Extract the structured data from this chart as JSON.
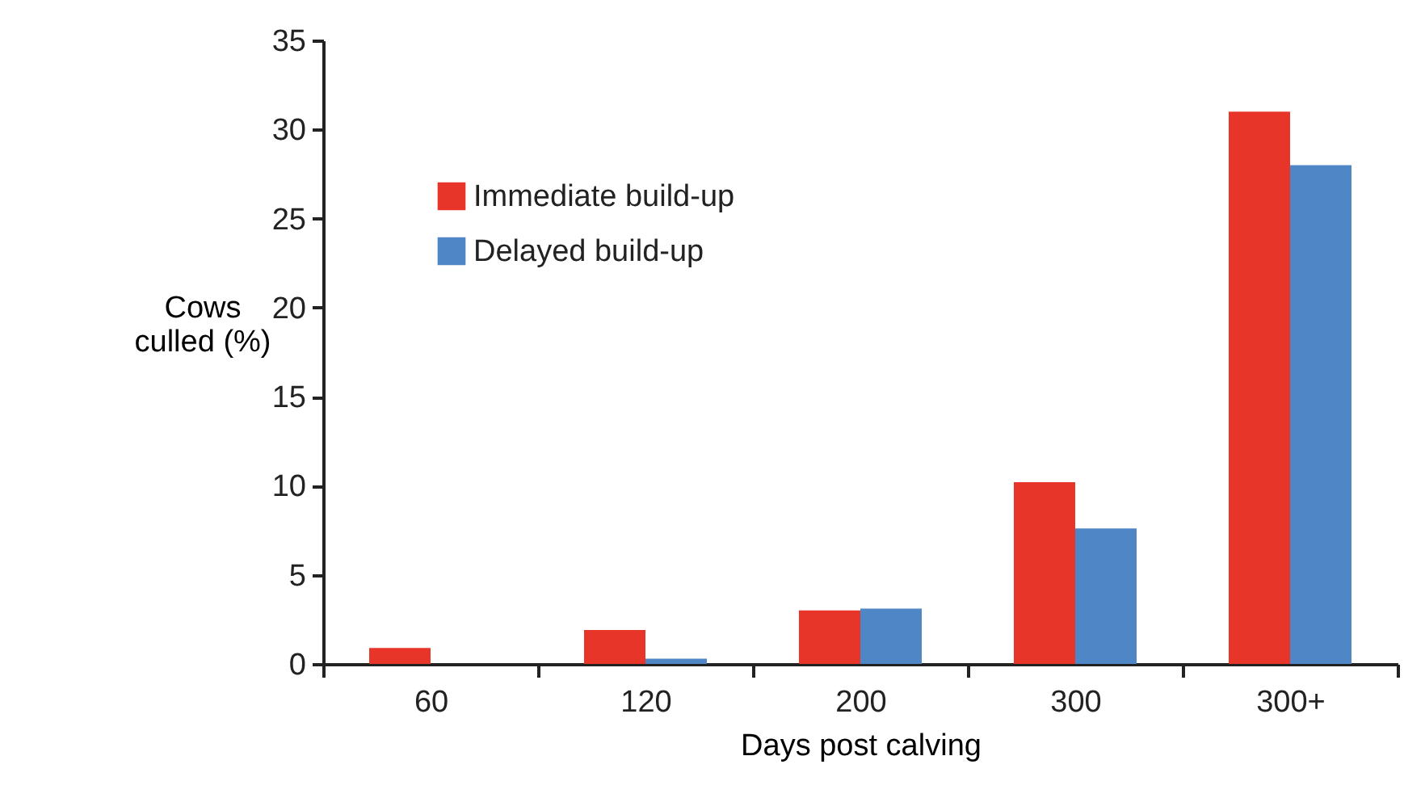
{
  "chart_data": {
    "type": "bar",
    "xlabel": "Days post calving",
    "ylabel": "Cows culled (%)",
    "categories": [
      "60",
      "120",
      "200",
      "300",
      "300+"
    ],
    "series": [
      {
        "name": "Immediate build-up",
        "color": "#e8352a",
        "values": [
          0.9,
          1.9,
          3.0,
          10.2,
          31
        ]
      },
      {
        "name": "Delayed build-up",
        "color": "#4f86c6",
        "values": [
          0,
          0.3,
          3.1,
          7.6,
          28
        ]
      }
    ],
    "ylim": [
      0,
      35
    ],
    "yticks": [
      0,
      5,
      10,
      15,
      20,
      25,
      30,
      35
    ],
    "grid": false,
    "legend": "top left"
  }
}
